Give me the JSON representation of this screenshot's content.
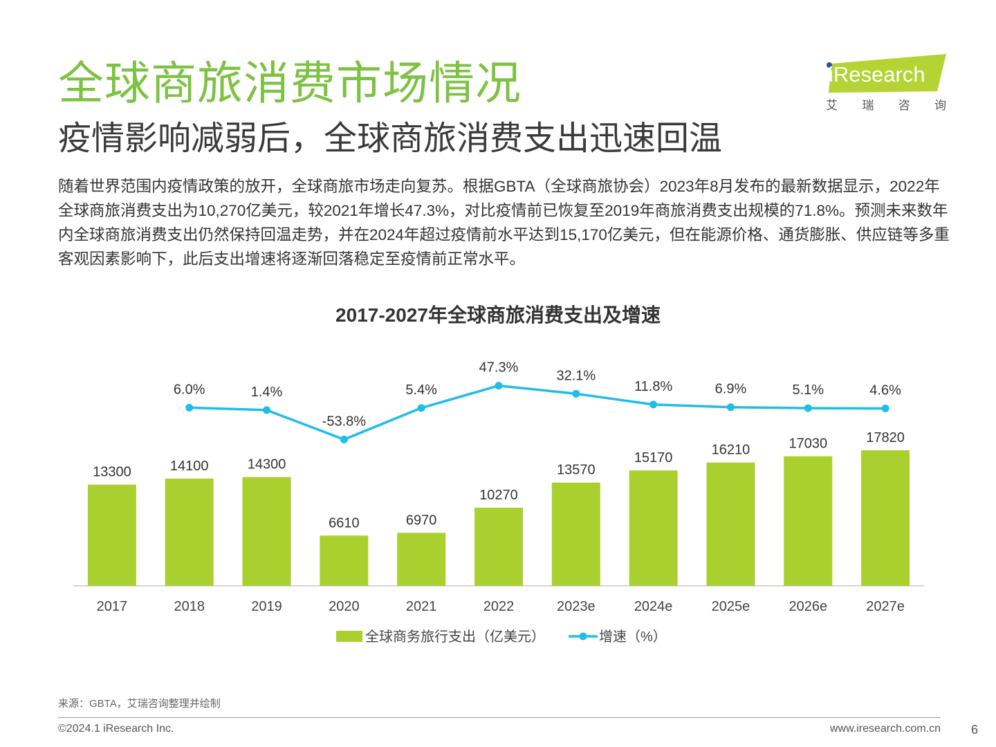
{
  "header": {
    "title": "全球商旅消费市场情况",
    "subtitle": "疫情影响减弱后，全球商旅消费支出迅速回温",
    "body": "随着世界范围内疫情政策的放开，全球商旅市场走向复苏。根据GBTA（全球商旅协会）2023年8月发布的最新数据显示，2022年全球商旅消费支出为10,270亿美元，较2021年增长47.3%，对比疫情前已恢复至2019年商旅消费支出规模的71.8%。预测未来数年内全球商旅消费支出仍然保持回温走势，并在2024年超过疫情前水平达到15,170亿美元，但在能源价格、通货膨胀、供应链等多重客观因素影响下，此后支出增速将逐渐回落稳定至疫情前正常水平。"
  },
  "logo": {
    "text": "iResearch",
    "sub": [
      "艾",
      "瑞",
      "咨",
      "询"
    ],
    "color": "#b5d334"
  },
  "chart_data": {
    "type": "bar",
    "title": "2017-2027年全球商旅消费支出及增速",
    "categories": [
      "2017",
      "2018",
      "2019",
      "2020",
      "2021",
      "2022",
      "2023e",
      "2024e",
      "2025e",
      "2026e",
      "2027e"
    ],
    "series": [
      {
        "name": "全球商务旅行支出（亿美元）",
        "type": "bar",
        "color": "#aad030",
        "values": [
          13300,
          14100,
          14300,
          6610,
          6970,
          10270,
          13570,
          15170,
          16210,
          17030,
          17820
        ],
        "labels": [
          "13300",
          "14100",
          "14300",
          "6610",
          "6970",
          "10270",
          "13570",
          "15170",
          "16210",
          "17030",
          "17820"
        ]
      },
      {
        "name": "增速（%）",
        "type": "line",
        "color": "#1fbde8",
        "values": [
          null,
          6.0,
          1.4,
          -53.8,
          5.4,
          47.3,
          32.1,
          11.8,
          6.9,
          5.1,
          4.6
        ],
        "labels": [
          "",
          "6.0%",
          "1.4%",
          "-53.8%",
          "5.4%",
          "47.3%",
          "32.1%",
          "11.8%",
          "6.9%",
          "5.1%",
          "4.6%"
        ]
      }
    ],
    "legend": "bottom-center",
    "grid": false
  },
  "footer": {
    "source": "来源：GBTA，艾瑞咨询整理并绘制",
    "copyright": "©2024.1 iResearch Inc.",
    "website": "www.iresearch.com.cn",
    "page": "6"
  }
}
